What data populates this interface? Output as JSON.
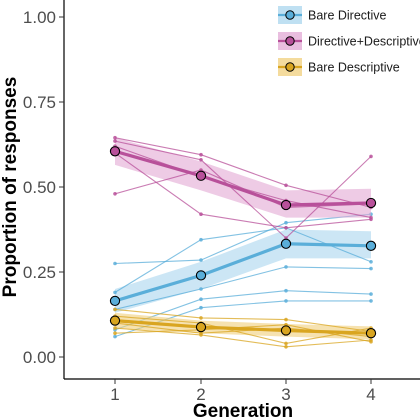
{
  "chart_data": {
    "type": "line",
    "x": [
      1,
      2,
      3,
      4
    ],
    "xlabel": "Generation",
    "ylabel": "Proportion of responses",
    "xlim": [
      0.5,
      4.5
    ],
    "ylim": [
      0,
      1
    ],
    "x_ticks": [
      "1",
      "2",
      "3",
      "4"
    ],
    "y_ticks": [
      "0.00",
      "0.25",
      "0.50",
      "0.75",
      "1.00"
    ],
    "y_tick_values": [
      0,
      0.25,
      0.5,
      0.75,
      1.0
    ],
    "grid": false,
    "legend_position": "top-right",
    "series": [
      {
        "name": "Bare Directive",
        "color": "#5aaed9",
        "band_color": "#aad6ee",
        "means": [
          0.165,
          0.24,
          0.333,
          0.327
        ],
        "ci_lower": [
          0.13,
          0.2,
          0.29,
          0.29
        ],
        "ci_upper": [
          0.2,
          0.28,
          0.375,
          0.37
        ],
        "chains": [
          [
            0.275,
            0.285,
            0.395,
            0.42
          ],
          [
            0.19,
            0.345,
            0.38,
            0.28
          ],
          [
            0.14,
            0.2,
            0.265,
            0.26
          ],
          [
            0.08,
            0.17,
            0.195,
            0.185
          ],
          [
            0.06,
            0.145,
            0.165,
            0.165
          ]
        ]
      },
      {
        "name": "Directive+Descriptive",
        "color": "#b8509a",
        "band_color": "#e2a8d4",
        "means": [
          0.605,
          0.533,
          0.447,
          0.453
        ],
        "ci_lower": [
          0.565,
          0.49,
          0.41,
          0.41
        ],
        "ci_upper": [
          0.645,
          0.575,
          0.49,
          0.495
        ],
        "chains": [
          [
            0.645,
            0.595,
            0.505,
            0.44
          ],
          [
            0.635,
            0.58,
            0.35,
            0.59
          ],
          [
            0.62,
            0.53,
            0.46,
            0.41
          ],
          [
            0.48,
            0.55,
            0.44,
            0.45
          ],
          [
            0.6,
            0.42,
            0.38,
            0.405
          ]
        ]
      },
      {
        "name": "Bare Descriptive",
        "color": "#d9a520",
        "band_color": "#f0cf7c",
        "means": [
          0.107,
          0.088,
          0.078,
          0.07
        ],
        "ci_lower": [
          0.085,
          0.07,
          0.06,
          0.052
        ],
        "ci_upper": [
          0.13,
          0.107,
          0.097,
          0.09
        ],
        "chains": [
          [
            0.14,
            0.115,
            0.11,
            0.075
          ],
          [
            0.12,
            0.1,
            0.04,
            0.085
          ],
          [
            0.1,
            0.07,
            0.085,
            0.06
          ],
          [
            0.085,
            0.065,
            0.03,
            0.05
          ],
          [
            0.07,
            0.08,
            0.095,
            0.045
          ]
        ]
      }
    ]
  }
}
